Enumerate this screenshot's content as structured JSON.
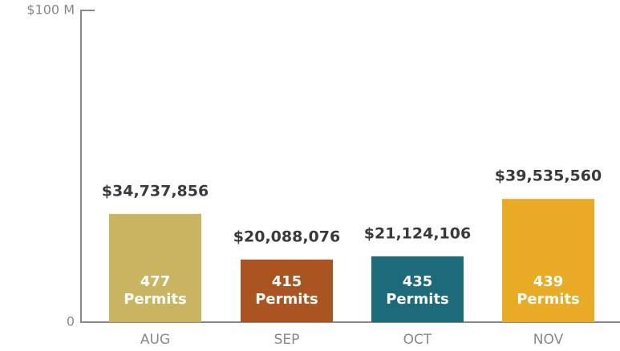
{
  "chart_data": {
    "type": "bar",
    "categories": [
      "AUG",
      "SEP",
      "OCT",
      "NOV"
    ],
    "values": [
      34737856,
      20088076,
      21124106,
      39535560
    ],
    "value_labels": [
      "$34,737,856",
      "$20,088,076",
      "$21,124,106",
      "$39,535,560"
    ],
    "permits": [
      477,
      415,
      435,
      439
    ],
    "permits_label": "Permits",
    "colors": [
      "#c9b462",
      "#a95421",
      "#1d6a7b",
      "#e9aa24"
    ],
    "ylim": [
      0,
      100000000
    ],
    "yticks": [
      0,
      {
        "value": 100000000,
        "label": "$100 M"
      }
    ]
  }
}
